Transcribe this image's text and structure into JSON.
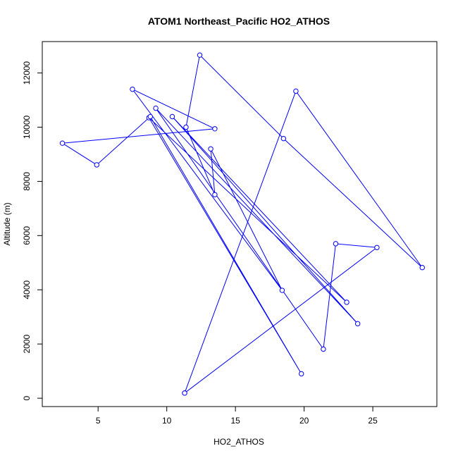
{
  "chart_data": {
    "type": "line",
    "title": "ATOM1 Northeast_Pacific HO2_ATHOS",
    "xlabel": "HO2_ATHOS",
    "ylabel": "Altitude (m)",
    "xlim": [
      2.0,
      28.6
    ],
    "ylim": [
      190,
      12660
    ],
    "x_ticks": [
      5,
      10,
      15,
      20,
      25
    ],
    "y_ticks": [
      0,
      2000,
      4000,
      6000,
      8000,
      10000,
      12000
    ],
    "grid": false,
    "line_color": "#0000ff",
    "marker": "open-circle",
    "points": [
      {
        "x": 11.3,
        "y": 190
      },
      {
        "x": 25.3,
        "y": 5560
      },
      {
        "x": 22.3,
        "y": 5700
      },
      {
        "x": 21.4,
        "y": 1810
      },
      {
        "x": 9.2,
        "y": 10700
      },
      {
        "x": 23.9,
        "y": 2750
      },
      {
        "x": 10.4,
        "y": 10390
      },
      {
        "x": 23.1,
        "y": 3540
      },
      {
        "x": 8.7,
        "y": 10350
      },
      {
        "x": 19.8,
        "y": 900
      },
      {
        "x": 8.8,
        "y": 10390
      },
      {
        "x": 4.9,
        "y": 8610
      },
      {
        "x": 2.4,
        "y": 9410
      },
      {
        "x": 13.5,
        "y": 9940
      },
      {
        "x": 7.5,
        "y": 11400
      },
      {
        "x": 18.4,
        "y": 3980
      },
      {
        "x": 13.2,
        "y": 9200
      },
      {
        "x": 13.5,
        "y": 7510
      },
      {
        "x": 11.4,
        "y": 10000
      },
      {
        "x": 12.4,
        "y": 12660
      },
      {
        "x": 18.5,
        "y": 9580
      },
      {
        "x": 28.6,
        "y": 4820
      },
      {
        "x": 19.4,
        "y": 11330
      },
      {
        "x": 11.3,
        "y": 190
      }
    ]
  }
}
